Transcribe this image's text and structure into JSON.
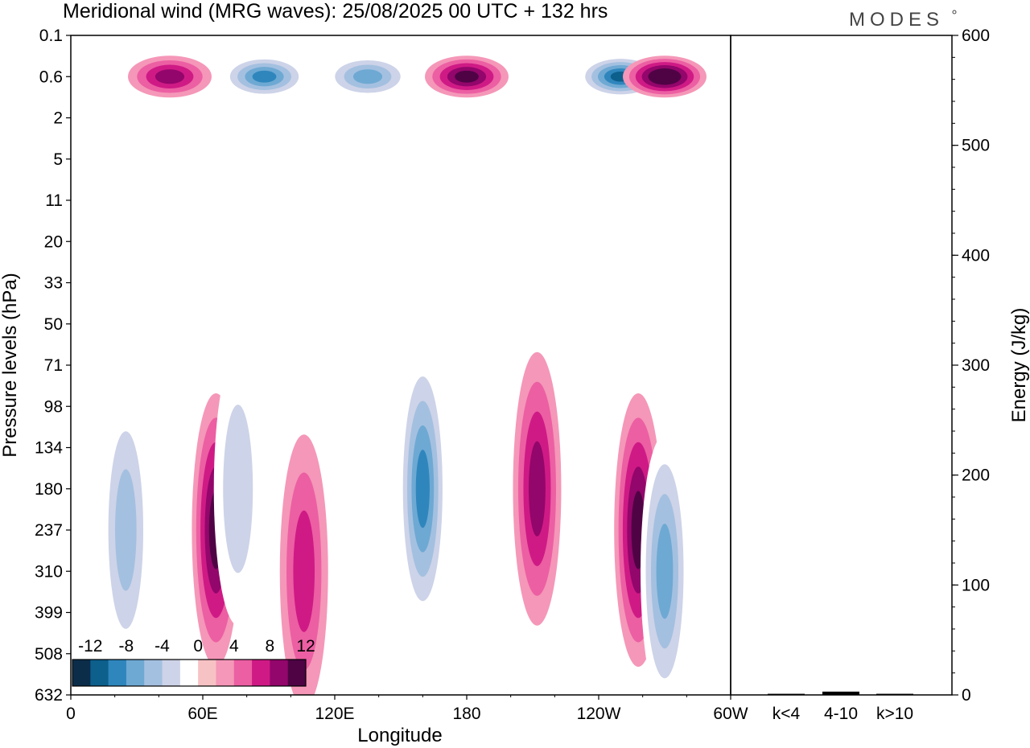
{
  "brand": "MODES",
  "chart_data": {
    "type": "heatmap",
    "title": "Meridional wind (MRG waves):  25/08/2025  00 UTC  + 132 hrs",
    "main_plot": {
      "xlabel": "Longitude",
      "ylabel": "Pressure levels (hPa)",
      "x_ticks": [
        "0",
        "60E",
        "120E",
        "180",
        "120W",
        "60W"
      ],
      "y_ticks": [
        "0.1",
        "0.6",
        "2",
        "5",
        "11",
        "20",
        "33",
        "50",
        "71",
        "98",
        "134",
        "180",
        "237",
        "310",
        "399",
        "508",
        "632"
      ],
      "colorbar": {
        "tick_labels": [
          "-12",
          "-8",
          "-4",
          "0",
          "4",
          "8",
          "12"
        ],
        "levels": [
          -14,
          -12,
          -10,
          -8,
          -6,
          -4,
          -2,
          2,
          4,
          6,
          8,
          10,
          12,
          14
        ],
        "colors": [
          "#0b2d4a",
          "#0d5f8c",
          "#2f86bd",
          "#6ea9d3",
          "#a4c0e0",
          "#cdd3e8",
          "#ffffff",
          "#f7c2c4",
          "#f597b8",
          "#ec5fa3",
          "#cf1a85",
          "#93066b",
          "#4f0345"
        ]
      },
      "features": [
        {
          "lon": 160,
          "level": "180",
          "value": -11
        },
        {
          "lon": 212,
          "level": "180",
          "value": 9
        },
        {
          "lon": 258,
          "level": "237",
          "value": 11
        },
        {
          "lon": 270,
          "level": "310",
          "value": -9
        },
        {
          "lon": 66,
          "level": "237",
          "value": 11
        },
        {
          "lon": 106,
          "level": "310",
          "value": 8
        },
        {
          "lon": 25,
          "level": "237",
          "value": -7
        },
        {
          "lon": 76,
          "level": "180",
          "value": -6
        },
        {
          "lon": 88,
          "level": "0.6",
          "value": -12
        },
        {
          "lon": 135,
          "level": "0.6",
          "value": -10
        },
        {
          "lon": 180,
          "level": "0.6",
          "value": 12
        },
        {
          "lon": 250,
          "level": "0.6",
          "value": -14
        },
        {
          "lon": 270,
          "level": "0.6",
          "value": 13
        },
        {
          "lon": 45,
          "level": "0.6",
          "value": 9
        }
      ]
    },
    "side_plot": {
      "type": "bar",
      "ylabel": "Energy (J/kg)",
      "ylim": [
        0,
        600
      ],
      "y_ticks": [
        "0",
        "100",
        "200",
        "300",
        "400",
        "500",
        "600"
      ],
      "categories": [
        "k<4",
        "4-10",
        "k>10"
      ],
      "values": [
        1,
        3,
        1
      ]
    }
  }
}
